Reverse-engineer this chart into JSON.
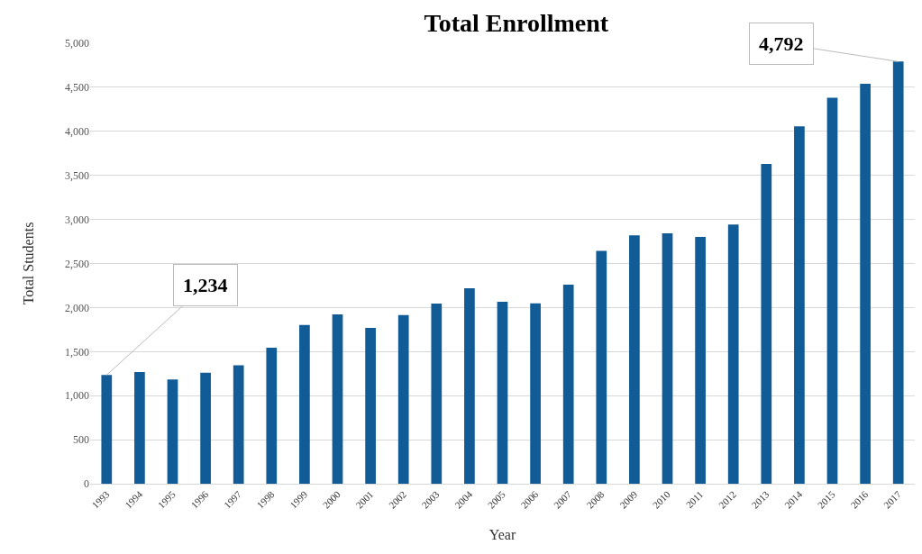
{
  "chart_data": {
    "type": "bar",
    "title": "Total Enrollment",
    "xlabel": "Year",
    "ylabel": "Total Students",
    "categories": [
      "1993",
      "1994",
      "1995",
      "1996",
      "1997",
      "1998",
      "1999",
      "2000",
      "2001",
      "2002",
      "2003",
      "2004",
      "2005",
      "2006",
      "2007",
      "2008",
      "2009",
      "2010",
      "2011",
      "2012",
      "2013",
      "2014",
      "2015",
      "2016",
      "2017"
    ],
    "values": [
      1234,
      1269,
      1184,
      1259,
      1344,
      1544,
      1803,
      1922,
      1769,
      1915,
      2044,
      2218,
      2065,
      2048,
      2259,
      2642,
      2819,
      2843,
      2802,
      2942,
      3631,
      4058,
      4382,
      4539,
      4792
    ],
    "color": "#115c96",
    "ylim": [
      0,
      5000
    ],
    "yticks": [
      {
        "value": 0,
        "label": "0"
      },
      {
        "value": 500,
        "label": "500"
      },
      {
        "value": 1000,
        "label": "1,000"
      },
      {
        "value": 1500,
        "label": "1,500"
      },
      {
        "value": 2000,
        "label": "2,000"
      },
      {
        "value": 2500,
        "label": "2,500"
      },
      {
        "value": 3000,
        "label": "3,000"
      },
      {
        "value": 3500,
        "label": "3,500"
      },
      {
        "value": 4000,
        "label": "4,000"
      },
      {
        "value": 4500,
        "label": "4,500"
      },
      {
        "value": 5000,
        "label": "5,000"
      }
    ],
    "grid": "y",
    "annotations": [
      {
        "text": "1,234",
        "x": "1993",
        "y": 1234
      },
      {
        "text": "4,792",
        "x": "2017",
        "y": 4792
      }
    ]
  }
}
